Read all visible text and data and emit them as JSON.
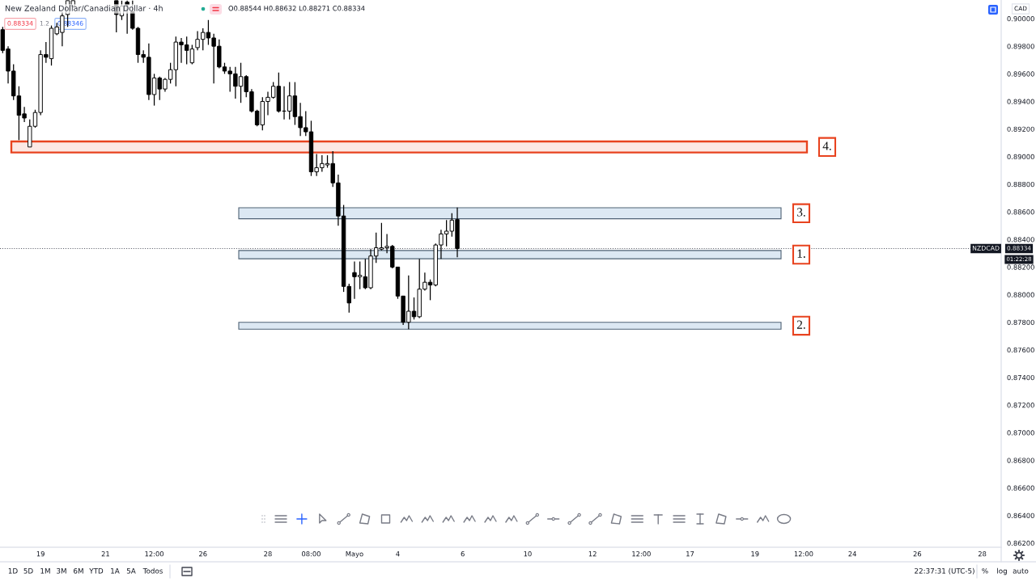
{
  "chart_data": {
    "type": "candlestick",
    "title": "New Zealand Dollar/Canadian Dollar · 4h",
    "ylabel": "CAD",
    "color": "#000000",
    "categories": [
      null,
      null,
      null,
      null,
      null,
      null,
      null,
      "19",
      null,
      null,
      null,
      null,
      null,
      null,
      null,
      null,
      null,
      null,
      null,
      "21",
      null,
      null,
      null,
      null,
      null,
      null,
      null,
      null,
      "12:00",
      null,
      null,
      null,
      null,
      null,
      null,
      null,
      null,
      "26",
      null,
      null,
      null,
      null,
      null,
      null,
      null,
      null,
      null,
      null,
      null,
      "28",
      null,
      null,
      null,
      null,
      null,
      null,
      null,
      "08:00",
      null,
      null,
      null,
      null,
      null,
      null,
      null,
      "Mayo",
      null,
      null,
      null,
      null,
      null,
      null,
      null,
      "4",
      null,
      null,
      null,
      null,
      null,
      null,
      null,
      null,
      null,
      null,
      null,
      "6",
      null,
      null,
      null,
      null,
      null,
      null,
      null,
      null,
      null,
      null,
      null,
      "10",
      null,
      null,
      null,
      null,
      null,
      null,
      null,
      null,
      null,
      null,
      null,
      "12",
      null,
      null,
      null,
      null,
      null,
      null,
      null,
      null,
      "12:00",
      null,
      null,
      null,
      null,
      null,
      null,
      null,
      null,
      "17",
      null,
      null,
      null,
      null,
      null,
      null,
      null,
      null,
      null,
      null,
      null,
      "19",
      null,
      null,
      null,
      null,
      null,
      null,
      null,
      null,
      "12:00",
      null,
      null,
      null,
      null,
      null,
      null,
      null,
      null,
      "24",
      null,
      null,
      null,
      null,
      null,
      null,
      null,
      null,
      null,
      null,
      null,
      "26",
      null,
      null,
      null,
      null,
      null,
      null,
      null,
      null,
      null,
      null,
      null,
      "28",
      null,
      null,
      null
    ],
    "ohlc": [
      [
        0.8992,
        0.8994,
        0.8975,
        0.8977
      ],
      [
        0.8978,
        0.898,
        0.8953,
        0.8962
      ],
      [
        0.8962,
        0.8967,
        0.8941,
        0.8944
      ],
      [
        0.8944,
        0.8951,
        0.8912,
        0.893
      ],
      [
        0.8931,
        0.8936,
        0.8925,
        0.8928
      ],
      [
        0.8907,
        0.8927,
        0.8907,
        0.8922
      ],
      [
        0.8922,
        0.8934,
        0.8921,
        0.8932
      ],
      [
        0.8932,
        0.8977,
        0.893,
        0.8974
      ],
      [
        0.8974,
        0.8983,
        0.8968,
        0.8972
      ],
      [
        0.8971,
        0.8995,
        0.8966,
        0.8993
      ],
      [
        0.8989,
        0.8997,
        0.8988,
        0.8994
      ],
      [
        0.899,
        0.9005,
        0.898,
        0.9002
      ],
      [
        0.9003,
        0.9013,
        0.8994,
        0.9013
      ],
      [
        0.9009,
        0.9013,
        0.9008,
        0.9013
      ],
      null,
      null,
      null,
      null,
      null,
      null,
      null,
      [
        0.9013,
        0.9013,
        0.899,
        0.9003
      ],
      [
        0.9002,
        0.9013,
        0.8999,
        0.9009
      ],
      [
        0.9012,
        0.9013,
        0.8989,
        0.901
      ],
      [
        0.9005,
        0.9013,
        0.8992,
        0.8993
      ],
      [
        0.8993,
        0.8994,
        0.8968,
        0.8974
      ],
      [
        0.8974,
        0.8977,
        0.8968,
        0.8972
      ],
      [
        0.8972,
        0.8982,
        0.8941,
        0.8945
      ],
      [
        0.8945,
        0.896,
        0.8937,
        0.8957
      ],
      [
        0.8957,
        0.8958,
        0.8941,
        0.8949
      ],
      [
        0.8949,
        0.8957,
        0.8947,
        0.8956
      ],
      [
        0.8956,
        0.8968,
        0.8953,
        0.8963
      ],
      [
        0.8963,
        0.8987,
        0.8951,
        0.8983
      ],
      [
        0.8983,
        0.8986,
        0.8968,
        0.8981
      ],
      [
        0.8981,
        0.8987,
        0.8967,
        0.8977
      ],
      [
        0.8968,
        0.8981,
        0.8967,
        0.8978
      ],
      [
        0.8979,
        0.8991,
        0.8977,
        0.8985
      ],
      [
        0.8985,
        0.8993,
        0.8977,
        0.899
      ],
      [
        0.899,
        0.8999,
        0.8981,
        0.8986
      ],
      [
        0.8986,
        0.8989,
        0.8953,
        0.898
      ],
      [
        0.898,
        0.8985,
        0.8964,
        0.8965
      ],
      [
        0.8965,
        0.8968,
        0.896,
        0.8962
      ],
      [
        0.8962,
        0.8965,
        0.8947,
        0.896
      ],
      [
        0.896,
        0.8965,
        0.8942,
        0.8951
      ],
      [
        0.8951,
        0.8968,
        0.8939,
        0.8958
      ],
      [
        0.8958,
        0.8959,
        0.8943,
        0.8947
      ],
      [
        0.8947,
        0.8949,
        0.8932,
        0.8933
      ],
      [
        0.8933,
        0.8934,
        0.8922,
        0.8923
      ],
      [
        0.8923,
        0.8943,
        0.8919,
        0.894
      ],
      [
        0.894,
        0.8947,
        0.893,
        0.8943
      ],
      [
        0.8943,
        0.8954,
        0.8942,
        0.8951
      ],
      [
        0.8951,
        0.8961,
        0.8932,
        0.8933
      ],
      [
        0.8933,
        0.8951,
        0.8927,
        0.8933
      ],
      [
        0.8933,
        0.8954,
        0.8927,
        0.8944
      ],
      [
        0.8944,
        0.8954,
        0.8923,
        0.8929
      ],
      [
        0.8929,
        0.8939,
        0.8915,
        0.8921
      ],
      [
        0.8921,
        0.8933,
        0.8915,
        0.8918
      ],
      [
        0.8918,
        0.8926,
        0.8886,
        0.8889
      ],
      [
        0.8889,
        0.8902,
        0.8886,
        0.8892
      ],
      [
        0.8892,
        0.8901,
        0.8889,
        0.8895
      ],
      [
        0.8894,
        0.8901,
        0.8892,
        0.8895
      ],
      [
        0.8895,
        0.8904,
        0.8878,
        0.8881
      ],
      [
        0.8881,
        0.8887,
        0.885,
        0.8857
      ],
      [
        0.8857,
        0.8865,
        0.8802,
        0.8806
      ],
      [
        0.8806,
        0.8808,
        0.8787,
        0.8794
      ],
      [
        0.8816,
        0.8824,
        0.8797,
        0.8813
      ],
      [
        0.8813,
        0.8824,
        0.8804,
        0.8814
      ],
      [
        0.8813,
        0.8826,
        0.8804,
        0.8805
      ],
      [
        0.8805,
        0.8833,
        0.8804,
        0.8828
      ],
      [
        0.8828,
        0.8845,
        0.8823,
        0.8834
      ],
      [
        0.8833,
        0.8852,
        0.8832,
        0.8834
      ],
      [
        0.8834,
        0.8844,
        0.883,
        0.8835
      ],
      [
        0.8835,
        0.8836,
        0.8819,
        0.882
      ],
      [
        0.882,
        0.882,
        0.8797,
        0.8799
      ],
      [
        0.8799,
        0.8799,
        0.8778,
        0.878
      ],
      [
        0.878,
        0.8814,
        0.8775,
        0.8788
      ],
      [
        0.8788,
        0.8798,
        0.8782,
        0.8784
      ],
      [
        0.8784,
        0.8826,
        0.8783,
        0.8804
      ],
      [
        0.8804,
        0.8816,
        0.8803,
        0.8809
      ],
      [
        0.8809,
        0.8811,
        0.8796,
        0.8807
      ],
      [
        0.8807,
        0.8837,
        0.8806,
        0.8836
      ],
      [
        0.8836,
        0.8847,
        0.8826,
        0.8844
      ],
      [
        0.8844,
        0.8854,
        0.8835,
        0.8846
      ],
      [
        0.8846,
        0.8859,
        0.8842,
        0.8854
      ],
      [
        0.88544,
        0.88632,
        0.88271,
        0.88334
      ],
      null,
      null,
      null,
      null,
      null,
      null,
      null,
      null,
      null,
      null,
      null,
      null,
      null,
      null,
      null,
      null,
      null,
      null,
      null,
      null,
      null,
      null,
      null,
      null,
      null,
      null,
      null,
      null,
      null,
      null,
      null,
      null,
      null,
      null,
      null,
      null,
      null,
      null,
      null,
      null,
      null,
      null,
      null,
      null,
      null,
      null,
      null,
      null,
      null,
      null,
      null,
      null,
      null,
      null,
      null,
      null,
      null,
      null,
      null,
      null,
      null,
      null,
      null,
      null,
      null,
      null,
      null,
      null,
      null,
      null,
      null,
      null,
      null,
      null,
      null,
      null,
      null,
      null,
      null,
      null,
      null,
      null,
      null,
      null,
      null,
      null,
      null,
      null,
      null,
      null,
      null,
      null,
      null,
      null,
      null,
      null,
      null,
      null,
      null,
      null
    ],
    "ylim": [
      0.8617,
      0.90135
    ],
    "yticks": [
      {
        "value": 0.862,
        "label": "0.86200"
      },
      {
        "value": 0.864,
        "label": "0.86400"
      },
      {
        "value": 0.866,
        "label": "0.86600"
      },
      {
        "value": 0.868,
        "label": "0.86800"
      },
      {
        "value": 0.87,
        "label": "0.87000"
      },
      {
        "value": 0.872,
        "label": "0.87200"
      },
      {
        "value": 0.874,
        "label": "0.87400"
      },
      {
        "value": 0.876,
        "label": "0.87600"
      },
      {
        "value": 0.878,
        "label": "0.87800"
      },
      {
        "value": 0.88,
        "label": "0.88000"
      },
      {
        "value": 0.882,
        "label": "0.88200"
      },
      {
        "value": 0.884,
        "label": "0.88400"
      },
      {
        "value": 0.886,
        "label": "0.88600"
      },
      {
        "value": 0.888,
        "label": "0.88800"
      },
      {
        "value": 0.89,
        "label": "0.89000"
      },
      {
        "value": 0.892,
        "label": "0.89200"
      },
      {
        "value": 0.894,
        "label": "0.89400"
      },
      {
        "value": 0.896,
        "label": "0.89600"
      },
      {
        "value": 0.898,
        "label": "0.89800"
      },
      {
        "value": 0.9,
        "label": "0.90000"
      }
    ],
    "ref_lines": [
      {
        "axis": "y",
        "value": 0.88334,
        "label": "NZDCAD",
        "color": "#5d606b",
        "line_style": "dotted"
      }
    ],
    "bands": [
      {
        "axis": "y",
        "from": 0.8903,
        "to": 0.8911,
        "label": "4.",
        "color": "#e8431f"
      },
      {
        "axis": "y",
        "from": 0.8855,
        "to": 0.8863,
        "label": "3.",
        "color": "#dce8f3"
      },
      {
        "axis": "y",
        "from": 0.8826,
        "to": 0.8832,
        "label": "1.",
        "color": "#dce8f3"
      },
      {
        "axis": "y",
        "from": 0.8775,
        "to": 0.878,
        "label": "2.",
        "color": "#dce8f3"
      }
    ],
    "annotations": [
      "O0.88544 H0.88632 L0.88271 C0.88334",
      "0.88334",
      "1.2",
      "0.88346",
      "01:22:28",
      "1D",
      "5D",
      "1M",
      "3M",
      "6M",
      "YTD",
      "1A",
      "5A",
      "Todos",
      "22:37:31 (UTC-5)",
      "%",
      "log",
      "auto"
    ]
  }
}
